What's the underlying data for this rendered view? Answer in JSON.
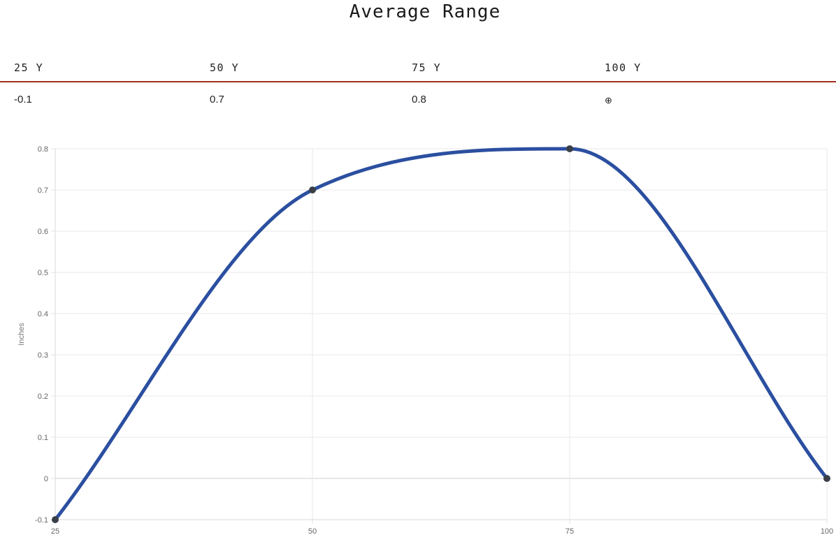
{
  "title": "Average Range",
  "table": {
    "headers": [
      "25 Y",
      "50 Y",
      "75 Y",
      "100 Y"
    ],
    "values": [
      "-0.1",
      "0.7",
      "0.8"
    ],
    "last_icon": "crosshair-icon",
    "last_icon_glyph": "⊕",
    "rule_color": "#a0301c"
  },
  "chart_data": {
    "type": "line",
    "x": [
      25,
      50,
      75,
      100
    ],
    "series": [
      {
        "values": [
          -0.1,
          0.7,
          0.8,
          0
        ],
        "color": "#2b4fa0",
        "point_color": "#3a3f48"
      }
    ],
    "ylabel": "Inches",
    "xlabel": "",
    "ylim": [
      -0.1,
      0.8
    ],
    "xlim": [
      25,
      100
    ],
    "yticks": [
      "0.8",
      "0.7",
      "0.6",
      "0.5",
      "0.4",
      "0.3",
      "0.2",
      "0.1",
      "0",
      "-0.1"
    ],
    "xticks": [
      "25",
      "50",
      "75",
      "100"
    ],
    "grid": true,
    "smooth": true
  }
}
